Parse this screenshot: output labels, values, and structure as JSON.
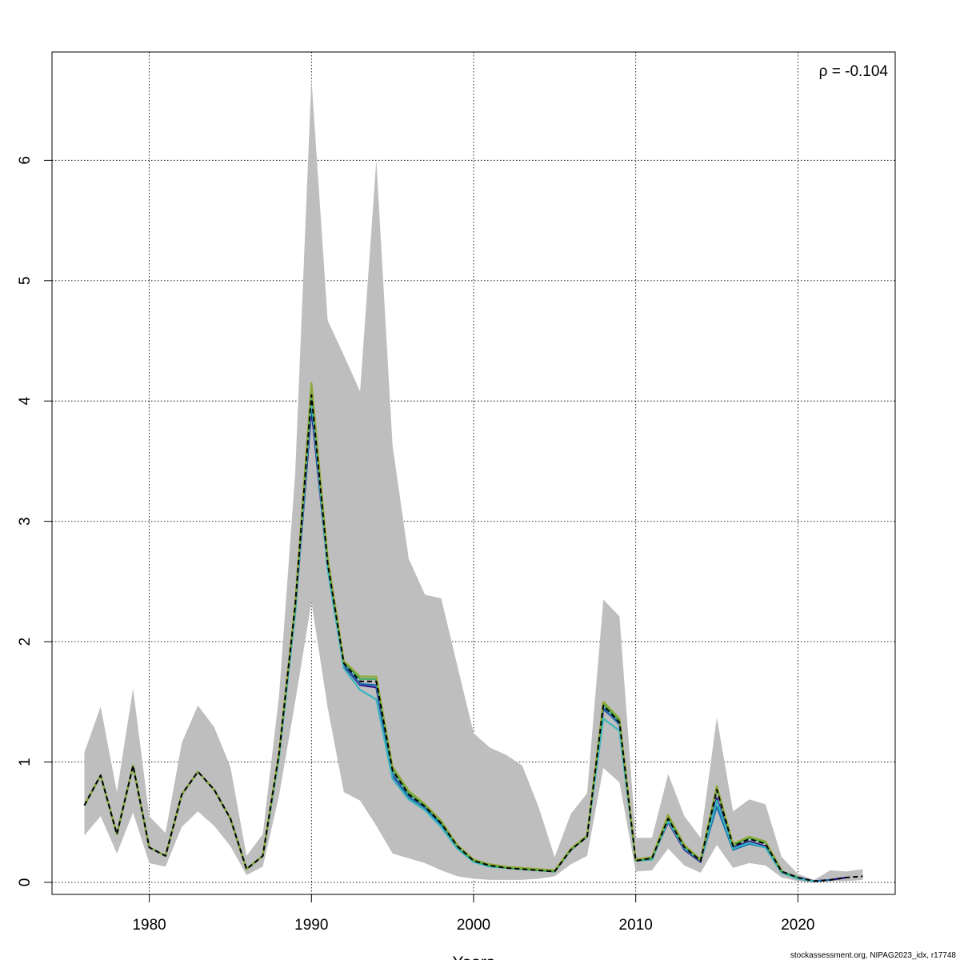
{
  "chart_data": {
    "type": "line",
    "xlabel": "Years",
    "ylabel": "",
    "xlim": [
      1974,
      2026
    ],
    "ylim": [
      -0.1,
      6.9
    ],
    "x_ticks": [
      1980,
      1990,
      2000,
      2010,
      2020
    ],
    "y_ticks": [
      0,
      1,
      2,
      3,
      4,
      5,
      6
    ],
    "grid": true,
    "annotation": "ρ = -0.104",
    "band_color": "#bebebe",
    "band": {
      "x": [
        1976,
        1977,
        1978,
        1979,
        1980,
        1981,
        1982,
        1983,
        1984,
        1985,
        1986,
        1987,
        1988,
        1989,
        1990,
        1991,
        1992,
        1993,
        1994,
        1995,
        1996,
        1997,
        1998,
        1999,
        2000,
        2001,
        2002,
        2003,
        2004,
        2005,
        2006,
        2007,
        2008,
        2009,
        2010,
        2011,
        2012,
        2013,
        2014,
        2015,
        2016,
        2017,
        2018,
        2019,
        2020,
        2021,
        2022,
        2023,
        2024
      ],
      "lower": [
        0.39,
        0.55,
        0.24,
        0.58,
        0.16,
        0.13,
        0.46,
        0.59,
        0.47,
        0.3,
        0.06,
        0.13,
        0.72,
        1.5,
        2.33,
        1.45,
        0.75,
        0.68,
        0.47,
        0.24,
        0.2,
        0.16,
        0.1,
        0.05,
        0.03,
        0.02,
        0.02,
        0.02,
        0.03,
        0.05,
        0.15,
        0.22,
        0.95,
        0.83,
        0.09,
        0.1,
        0.28,
        0.14,
        0.08,
        0.31,
        0.12,
        0.16,
        0.14,
        0.04,
        0.01,
        0.0,
        0.01,
        0.01,
        0.02
      ],
      "upper": [
        1.08,
        1.46,
        0.75,
        1.61,
        0.55,
        0.41,
        1.16,
        1.47,
        1.29,
        0.96,
        0.22,
        0.4,
        1.55,
        3.4,
        6.68,
        4.67,
        4.38,
        4.08,
        6.0,
        3.63,
        2.69,
        2.39,
        2.36,
        1.8,
        1.24,
        1.12,
        1.06,
        0.97,
        0.63,
        0.21,
        0.57,
        0.74,
        2.35,
        2.21,
        0.37,
        0.37,
        0.9,
        0.55,
        0.37,
        1.37,
        0.59,
        0.69,
        0.65,
        0.21,
        0.07,
        0.02,
        0.1,
        0.09,
        0.11
      ]
    },
    "series": [
      {
        "color": "#000000",
        "dash": true,
        "x": [
          1976,
          1977,
          1978,
          1979,
          1980,
          1981,
          1982,
          1983,
          1984,
          1985,
          1986,
          1987,
          1988,
          1989,
          1990,
          1991,
          1992,
          1993,
          1994,
          1995,
          1996,
          1997,
          1998,
          1999,
          2000,
          2001,
          2002,
          2003,
          2004,
          2005,
          2006,
          2007,
          2008,
          2009,
          2010,
          2011,
          2012,
          2013,
          2014,
          2015,
          2016,
          2017,
          2018,
          2019,
          2020,
          2021,
          2022,
          2023,
          2024
        ],
        "y": [
          0.64,
          0.89,
          0.4,
          0.97,
          0.29,
          0.22,
          0.73,
          0.92,
          0.77,
          0.53,
          0.11,
          0.22,
          1.07,
          2.3,
          4.05,
          2.65,
          1.82,
          1.67,
          1.67,
          0.93,
          0.73,
          0.63,
          0.49,
          0.3,
          0.18,
          0.14,
          0.12,
          0.11,
          0.1,
          0.09,
          0.27,
          0.38,
          1.47,
          1.33,
          0.18,
          0.2,
          0.53,
          0.29,
          0.18,
          0.77,
          0.3,
          0.36,
          0.32,
          0.09,
          0.04,
          0.01,
          0.02,
          0.04,
          0.05
        ]
      },
      {
        "color": "#2e0f8a",
        "dash": false,
        "x": [
          1976,
          1977,
          1978,
          1979,
          1980,
          1981,
          1982,
          1983,
          1984,
          1985,
          1986,
          1987,
          1988,
          1989,
          1990,
          1991,
          1992,
          1993,
          1994,
          1995,
          1996,
          1997,
          1998,
          1999,
          2000,
          2001,
          2002,
          2003,
          2004,
          2005,
          2006,
          2007,
          2008,
          2009,
          2010,
          2011,
          2012,
          2013,
          2014,
          2015,
          2016,
          2017,
          2018,
          2019,
          2020,
          2021,
          2022,
          2023
        ],
        "y": [
          0.64,
          0.89,
          0.4,
          0.97,
          0.29,
          0.22,
          0.73,
          0.92,
          0.77,
          0.53,
          0.11,
          0.22,
          1.05,
          2.25,
          3.93,
          2.62,
          1.8,
          1.64,
          1.62,
          0.89,
          0.71,
          0.62,
          0.48,
          0.29,
          0.18,
          0.14,
          0.12,
          0.11,
          0.1,
          0.09,
          0.27,
          0.38,
          1.44,
          1.32,
          0.18,
          0.2,
          0.5,
          0.27,
          0.17,
          0.7,
          0.29,
          0.34,
          0.3,
          0.09,
          0.04,
          0.01,
          0.02,
          0.04
        ]
      },
      {
        "color": "#1b6fb0",
        "dash": false,
        "x": [
          1976,
          1977,
          1978,
          1979,
          1980,
          1981,
          1982,
          1983,
          1984,
          1985,
          1986,
          1987,
          1988,
          1989,
          1990,
          1991,
          1992,
          1993,
          1994,
          1995,
          1996,
          1997,
          1998,
          1999,
          2000,
          2001,
          2002,
          2003,
          2004,
          2005,
          2006,
          2007,
          2008,
          2009,
          2010,
          2011,
          2012,
          2013,
          2014,
          2015,
          2016,
          2017,
          2018,
          2019,
          2020,
          2021,
          2022
        ],
        "y": [
          0.64,
          0.89,
          0.4,
          0.97,
          0.29,
          0.22,
          0.73,
          0.92,
          0.77,
          0.53,
          0.11,
          0.22,
          1.05,
          2.26,
          3.98,
          2.63,
          1.81,
          1.65,
          1.64,
          0.9,
          0.71,
          0.62,
          0.48,
          0.29,
          0.18,
          0.14,
          0.12,
          0.11,
          0.1,
          0.09,
          0.27,
          0.38,
          1.45,
          1.31,
          0.18,
          0.19,
          0.52,
          0.28,
          0.18,
          0.63,
          0.27,
          0.32,
          0.29,
          0.08,
          0.03,
          0.01,
          0.02
        ]
      },
      {
        "color": "#36b5bd",
        "dash": false,
        "x": [
          1976,
          1977,
          1978,
          1979,
          1980,
          1981,
          1982,
          1983,
          1984,
          1985,
          1986,
          1987,
          1988,
          1989,
          1990,
          1991,
          1992,
          1993,
          1994,
          1995,
          1996,
          1997,
          1998,
          1999,
          2000,
          2001,
          2002,
          2003,
          2004,
          2005,
          2006,
          2007,
          2008,
          2009,
          2010,
          2011,
          2012,
          2013,
          2014,
          2015,
          2016,
          2017,
          2018,
          2019,
          2020,
          2021
        ],
        "y": [
          0.64,
          0.89,
          0.4,
          0.97,
          0.29,
          0.22,
          0.73,
          0.92,
          0.77,
          0.53,
          0.11,
          0.22,
          1.04,
          2.24,
          4.02,
          2.6,
          1.78,
          1.6,
          1.52,
          0.86,
          0.69,
          0.6,
          0.46,
          0.28,
          0.17,
          0.13,
          0.12,
          0.11,
          0.1,
          0.09,
          0.27,
          0.38,
          1.36,
          1.26,
          0.18,
          0.19,
          0.51,
          0.28,
          0.18,
          0.68,
          0.28,
          0.33,
          0.29,
          0.08,
          0.03,
          0.01
        ]
      },
      {
        "color": "#35a852",
        "dash": false,
        "x": [
          1976,
          1977,
          1978,
          1979,
          1980,
          1981,
          1982,
          1983,
          1984,
          1985,
          1986,
          1987,
          1988,
          1989,
          1990,
          1991,
          1992,
          1993,
          1994,
          1995,
          1996,
          1997,
          1998,
          1999,
          2000,
          2001,
          2002,
          2003,
          2004,
          2005,
          2006,
          2007,
          2008,
          2009,
          2010,
          2011,
          2012,
          2013,
          2014,
          2015,
          2016,
          2017,
          2018,
          2019,
          2020
        ],
        "y": [
          0.64,
          0.89,
          0.4,
          0.97,
          0.29,
          0.22,
          0.73,
          0.92,
          0.77,
          0.53,
          0.11,
          0.22,
          1.07,
          2.3,
          4.12,
          2.68,
          1.83,
          1.69,
          1.69,
          0.94,
          0.74,
          0.64,
          0.5,
          0.3,
          0.18,
          0.14,
          0.12,
          0.11,
          0.1,
          0.09,
          0.27,
          0.38,
          1.48,
          1.34,
          0.18,
          0.2,
          0.54,
          0.3,
          0.18,
          0.78,
          0.31,
          0.37,
          0.33,
          0.09,
          0.04
        ]
      },
      {
        "color": "#8da832",
        "dash": false,
        "x": [
          1976,
          1977,
          1978,
          1979,
          1980,
          1981,
          1982,
          1983,
          1984,
          1985,
          1986,
          1987,
          1988,
          1989,
          1990,
          1991,
          1992,
          1993,
          1994,
          1995,
          1996,
          1997,
          1998,
          1999,
          2000,
          2001,
          2002,
          2003,
          2004,
          2005,
          2006,
          2007,
          2008,
          2009,
          2010,
          2011,
          2012,
          2013,
          2014,
          2015,
          2016,
          2017,
          2018,
          2019
        ],
        "y": [
          0.64,
          0.89,
          0.4,
          0.97,
          0.29,
          0.22,
          0.73,
          0.92,
          0.77,
          0.53,
          0.11,
          0.22,
          1.08,
          2.32,
          4.15,
          2.7,
          1.84,
          1.71,
          1.71,
          0.96,
          0.76,
          0.65,
          0.51,
          0.31,
          0.19,
          0.15,
          0.13,
          0.12,
          0.11,
          0.1,
          0.28,
          0.39,
          1.5,
          1.36,
          0.19,
          0.21,
          0.56,
          0.31,
          0.19,
          0.8,
          0.32,
          0.38,
          0.34,
          0.1
        ]
      }
    ]
  },
  "footer": "stockassessment.org, NIPAG2023_idx, r17748"
}
